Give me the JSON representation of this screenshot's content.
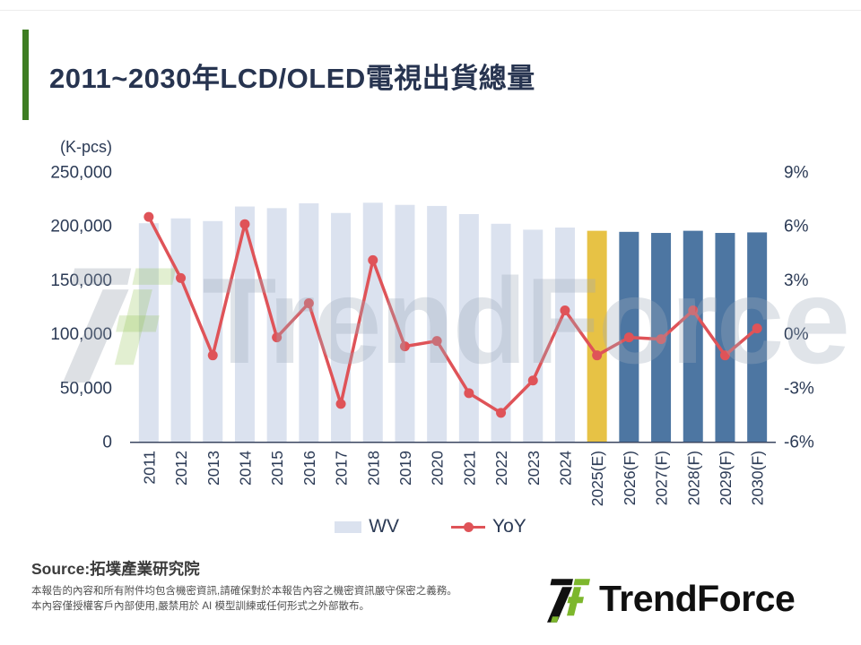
{
  "header": {
    "title": "2011~2030年LCD/OLED電視出貨總量"
  },
  "chart_data": {
    "type": "combo",
    "title": "2011~2030年LCD/OLED電視出貨總量",
    "unit_label": "(K-pcs)",
    "grid": false,
    "legend_position": "bottom-center",
    "categories": [
      "2011",
      "2012",
      "2013",
      "2014",
      "2015",
      "2016",
      "2017",
      "2018",
      "2019",
      "2020",
      "2021",
      "2022",
      "2023",
      "2024",
      "2025(E)",
      "2026(F)",
      "2027(F)",
      "2028(F)",
      "2029(F)",
      "2030(F)"
    ],
    "series": [
      {
        "name": "WV",
        "type": "bar",
        "axis": "left",
        "values": [
          202500,
          207000,
          204500,
          218000,
          216500,
          221000,
          212000,
          221500,
          219500,
          218500,
          211000,
          202000,
          196500,
          198500,
          195500,
          194500,
          193500,
          195500,
          193500,
          194000
        ]
      },
      {
        "name": "YoY",
        "type": "line",
        "axis": "right",
        "values": [
          6.5,
          3.1,
          -1.2,
          6.1,
          -0.2,
          1.7,
          -3.9,
          4.1,
          -0.7,
          -0.4,
          -3.3,
          -4.4,
          -2.6,
          1.3,
          -1.2,
          -0.2,
          -0.3,
          1.3,
          -1.2,
          0.3
        ]
      }
    ],
    "left_axis": {
      "min": 0,
      "max": 250000,
      "ticks": [
        "250,000",
        "200,000",
        "150,000",
        "100,000",
        "50,000",
        "0"
      ]
    },
    "right_axis": {
      "min": -6,
      "max": 9,
      "ticks": [
        "9%",
        "6%",
        "3%",
        "0%",
        "-3%",
        "-6%"
      ]
    },
    "bar_colors": [
      "#dbe2ef",
      "#dbe2ef",
      "#dbe2ef",
      "#dbe2ef",
      "#dbe2ef",
      "#dbe2ef",
      "#dbe2ef",
      "#dbe2ef",
      "#dbe2ef",
      "#dbe2ef",
      "#dbe2ef",
      "#dbe2ef",
      "#dbe2ef",
      "#dbe2ef",
      "#e7c245",
      "#4d76a2",
      "#4d76a2",
      "#4d76a2",
      "#4d76a2",
      "#4d76a2"
    ],
    "line_color": "#df5358",
    "axis_text_color": "#2b3a55",
    "baseline_color": "#3a4660",
    "legend": [
      {
        "label": "WV",
        "marker": "bar",
        "color": "#dbe2ef"
      },
      {
        "label": "YoY",
        "marker": "line",
        "color": "#df5358"
      }
    ]
  },
  "watermark": {
    "text": "TrendForce"
  },
  "footer": {
    "source": "Source:拓墣產業研究院",
    "disclaimer_line1": "本報告的內容和所有附件均包含機密資訊,請確保對於本報告內容之機密資訊嚴守保密之義務。",
    "disclaimer_line2": "本內容僅授權客戶內部使用,嚴禁用於 AI 模型訓練或任何形式之外部散布。",
    "logo_text": "TrendForce"
  },
  "colors": {
    "accent_green": "#3e7d22",
    "title_text": "#273450",
    "bar_historical": "#dbe2ef",
    "bar_estimate": "#e7c245",
    "bar_forecast": "#4d76a2",
    "line_red": "#df5358",
    "logo_green": "#7db72c",
    "logo_black": "#101010"
  }
}
